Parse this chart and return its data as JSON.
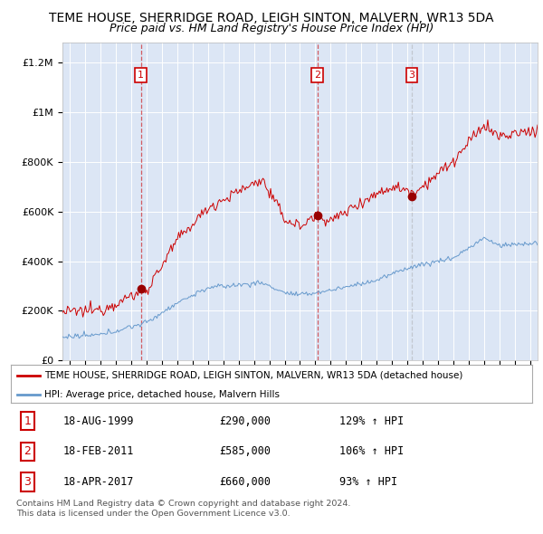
{
  "title": "TEME HOUSE, SHERRIDGE ROAD, LEIGH SINTON, MALVERN, WR13 5DA",
  "subtitle": "Price paid vs. HM Land Registry's House Price Index (HPI)",
  "title_fontsize": 10,
  "subtitle_fontsize": 9,
  "background_color": "#ffffff",
  "plot_bg_color": "#dce6f5",
  "ylabel_ticks": [
    "£0",
    "£200K",
    "£400K",
    "£600K",
    "£800K",
    "£1M",
    "£1.2M"
  ],
  "ylim": [
    0,
    1280000
  ],
  "xlim_start": 1994.5,
  "xlim_end": 2025.5,
  "sale_dates": [
    1999.62,
    2011.13,
    2017.29
  ],
  "sale_prices": [
    290000,
    585000,
    660000
  ],
  "sale_labels": [
    "1",
    "2",
    "3"
  ],
  "red_line_color": "#cc0000",
  "blue_line_color": "#6699cc",
  "sale_marker_color": "#990000",
  "legend_red_label": "TEME HOUSE, SHERRIDGE ROAD, LEIGH SINTON, MALVERN, WR13 5DA (detached house)",
  "legend_blue_label": "HPI: Average price, detached house, Malvern Hills",
  "table_rows": [
    {
      "num": "1",
      "date": "18-AUG-1999",
      "price": "£290,000",
      "hpi": "129% ↑ HPI"
    },
    {
      "num": "2",
      "date": "18-FEB-2011",
      "price": "£585,000",
      "hpi": "106% ↑ HPI"
    },
    {
      "num": "3",
      "date": "18-APR-2017",
      "price": "£660,000",
      "hpi": "93% ↑ HPI"
    }
  ],
  "footnote": "Contains HM Land Registry data © Crown copyright and database right 2024.\nThis data is licensed under the Open Government Licence v3.0.",
  "dashed_colors": [
    "#cc0000",
    "#cc0000",
    "#aaaaaa"
  ],
  "dashed_alphas": [
    0.6,
    0.6,
    0.5
  ]
}
